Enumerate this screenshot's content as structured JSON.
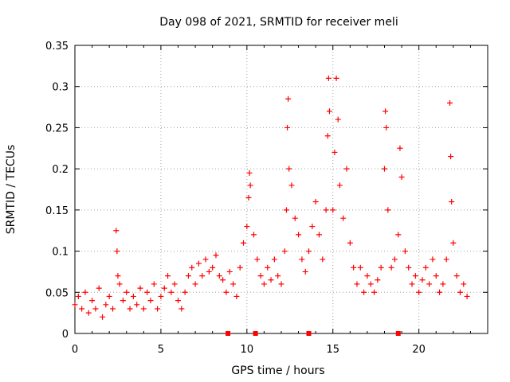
{
  "chart_data": {
    "type": "scatter",
    "title": "Day 098 of 2021, SRMTID for receiver meli",
    "xlabel": "GPS time / hours",
    "ylabel": "SRMTID / TECUs",
    "xlim": [
      0,
      24
    ],
    "ylim": [
      0,
      0.35
    ],
    "x_ticks": [
      0,
      5,
      10,
      15,
      20
    ],
    "x_tick_labels": [
      "0",
      "5",
      "10",
      "15",
      "20"
    ],
    "y_ticks": [
      0,
      0.05,
      0.1,
      0.15,
      0.2,
      0.25,
      0.3,
      0.35
    ],
    "y_tick_labels": [
      "0",
      "0.05",
      "0.1",
      "0.15",
      "0.2",
      "0.25",
      "0.3",
      "0.35"
    ],
    "grid": true,
    "marker": "plus",
    "color": "#ff0000",
    "series": [
      {
        "name": "SRMTID",
        "points": [
          [
            0.0,
            0.035
          ],
          [
            0.2,
            0.045
          ],
          [
            0.4,
            0.03
          ],
          [
            0.6,
            0.05
          ],
          [
            0.8,
            0.025
          ],
          [
            1.0,
            0.04
          ],
          [
            1.2,
            0.03
          ],
          [
            1.4,
            0.055
          ],
          [
            1.6,
            0.02
          ],
          [
            1.8,
            0.035
          ],
          [
            2.0,
            0.045
          ],
          [
            2.2,
            0.03
          ],
          [
            2.4,
            0.125
          ],
          [
            2.45,
            0.1
          ],
          [
            2.5,
            0.07
          ],
          [
            2.6,
            0.06
          ],
          [
            2.8,
            0.04
          ],
          [
            3.0,
            0.05
          ],
          [
            3.2,
            0.03
          ],
          [
            3.4,
            0.045
          ],
          [
            3.6,
            0.035
          ],
          [
            3.8,
            0.055
          ],
          [
            4.0,
            0.03
          ],
          [
            4.2,
            0.05
          ],
          [
            4.4,
            0.04
          ],
          [
            4.6,
            0.06
          ],
          [
            4.8,
            0.03
          ],
          [
            5.0,
            0.045
          ],
          [
            5.2,
            0.055
          ],
          [
            5.4,
            0.07
          ],
          [
            5.6,
            0.05
          ],
          [
            5.8,
            0.06
          ],
          [
            6.0,
            0.04
          ],
          [
            6.2,
            0.03
          ],
          [
            6.4,
            0.05
          ],
          [
            6.6,
            0.07
          ],
          [
            6.8,
            0.08
          ],
          [
            7.0,
            0.06
          ],
          [
            7.2,
            0.085
          ],
          [
            7.4,
            0.07
          ],
          [
            7.6,
            0.09
          ],
          [
            7.8,
            0.075
          ],
          [
            8.0,
            0.08
          ],
          [
            8.2,
            0.095
          ],
          [
            8.4,
            0.07
          ],
          [
            8.6,
            0.065
          ],
          [
            8.8,
            0.05
          ],
          [
            9.0,
            0.075
          ],
          [
            9.2,
            0.06
          ],
          [
            9.4,
            0.045
          ],
          [
            9.6,
            0.08
          ],
          [
            9.8,
            0.11
          ],
          [
            10.0,
            0.13
          ],
          [
            10.1,
            0.165
          ],
          [
            10.15,
            0.195
          ],
          [
            10.2,
            0.18
          ],
          [
            10.4,
            0.12
          ],
          [
            10.6,
            0.09
          ],
          [
            10.8,
            0.07
          ],
          [
            11.0,
            0.06
          ],
          [
            11.2,
            0.08
          ],
          [
            11.4,
            0.065
          ],
          [
            11.6,
            0.09
          ],
          [
            11.8,
            0.07
          ],
          [
            12.0,
            0.06
          ],
          [
            12.2,
            0.1
          ],
          [
            12.3,
            0.15
          ],
          [
            12.35,
            0.25
          ],
          [
            12.4,
            0.285
          ],
          [
            12.45,
            0.2
          ],
          [
            12.6,
            0.18
          ],
          [
            12.8,
            0.14
          ],
          [
            13.0,
            0.12
          ],
          [
            13.2,
            0.09
          ],
          [
            13.4,
            0.075
          ],
          [
            13.6,
            0.1
          ],
          [
            13.8,
            0.13
          ],
          [
            14.0,
            0.16
          ],
          [
            14.2,
            0.12
          ],
          [
            14.4,
            0.09
          ],
          [
            14.6,
            0.15
          ],
          [
            14.7,
            0.24
          ],
          [
            14.75,
            0.31
          ],
          [
            14.8,
            0.27
          ],
          [
            15.0,
            0.15
          ],
          [
            15.1,
            0.22
          ],
          [
            15.2,
            0.31
          ],
          [
            15.3,
            0.26
          ],
          [
            15.4,
            0.18
          ],
          [
            15.6,
            0.14
          ],
          [
            15.8,
            0.2
          ],
          [
            16.0,
            0.11
          ],
          [
            16.2,
            0.08
          ],
          [
            16.4,
            0.06
          ],
          [
            16.6,
            0.08
          ],
          [
            16.8,
            0.05
          ],
          [
            17.0,
            0.07
          ],
          [
            17.2,
            0.06
          ],
          [
            17.4,
            0.05
          ],
          [
            17.6,
            0.065
          ],
          [
            17.8,
            0.08
          ],
          [
            18.0,
            0.2
          ],
          [
            18.05,
            0.27
          ],
          [
            18.1,
            0.25
          ],
          [
            18.2,
            0.15
          ],
          [
            18.4,
            0.08
          ],
          [
            18.6,
            0.09
          ],
          [
            18.8,
            0.12
          ],
          [
            18.9,
            0.225
          ],
          [
            19.0,
            0.19
          ],
          [
            19.2,
            0.1
          ],
          [
            19.4,
            0.08
          ],
          [
            19.6,
            0.06
          ],
          [
            19.8,
            0.07
          ],
          [
            20.0,
            0.05
          ],
          [
            20.2,
            0.065
          ],
          [
            20.4,
            0.08
          ],
          [
            20.6,
            0.06
          ],
          [
            20.8,
            0.09
          ],
          [
            21.0,
            0.07
          ],
          [
            21.2,
            0.05
          ],
          [
            21.4,
            0.06
          ],
          [
            21.6,
            0.09
          ],
          [
            21.8,
            0.28
          ],
          [
            21.85,
            0.215
          ],
          [
            21.9,
            0.16
          ],
          [
            22.0,
            0.11
          ],
          [
            22.2,
            0.07
          ],
          [
            22.4,
            0.05
          ],
          [
            22.6,
            0.06
          ],
          [
            22.8,
            0.045
          ]
        ]
      }
    ],
    "gap_markers_x": [
      8.9,
      10.5,
      13.6,
      18.8
    ]
  }
}
